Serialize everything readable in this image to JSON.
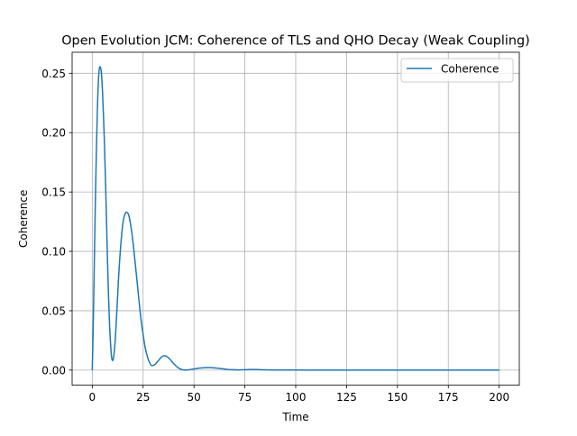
{
  "chart_data": {
    "type": "line",
    "title": "Open Evolution JCM: Coherence of TLS and QHO Decay (Weak Coupling)",
    "xlabel": "Time",
    "ylabel": "Coherence",
    "xlim": [
      -9.9,
      209.9
    ],
    "ylim": [
      -0.0127,
      0.2677
    ],
    "xticks": [
      0,
      25,
      50,
      75,
      100,
      125,
      150,
      175,
      200
    ],
    "xtick_labels": [
      "0",
      "25",
      "50",
      "75",
      "100",
      "125",
      "150",
      "175",
      "200"
    ],
    "yticks": [
      0.0,
      0.05,
      0.1,
      0.15,
      0.2,
      0.25
    ],
    "ytick_labels": [
      "0.00",
      "0.05",
      "0.10",
      "0.15",
      "0.20",
      "0.25"
    ],
    "grid": true,
    "legend": {
      "position": "upper-right",
      "entries": [
        "Coherence"
      ]
    },
    "series": [
      {
        "name": "Coherence",
        "color": "#1f77b4",
        "x": [
          0,
          0.5,
          1,
          1.5,
          2,
          2.5,
          3,
          3.5,
          4,
          4.5,
          5,
          5.5,
          6,
          6.5,
          7,
          7.5,
          8,
          8.5,
          9,
          9.5,
          10,
          10.5,
          11,
          11.5,
          12,
          12.5,
          13,
          14,
          15,
          16,
          17,
          18,
          19,
          20,
          21,
          22,
          23,
          24,
          25,
          26,
          27,
          28,
          29,
          30,
          31,
          32,
          33,
          34,
          35,
          36,
          37,
          38,
          39,
          40,
          41,
          42,
          43,
          44,
          45,
          46,
          47,
          48,
          49,
          50,
          52,
          54,
          56,
          58,
          60,
          62,
          64,
          66,
          68,
          70,
          72,
          74,
          76,
          78,
          80,
          82,
          84,
          86,
          88,
          90,
          95,
          100,
          110,
          120,
          140,
          160,
          180,
          200
        ],
        "y": [
          0.0,
          0.04,
          0.09,
          0.14,
          0.183,
          0.218,
          0.243,
          0.254,
          0.255,
          0.25,
          0.236,
          0.215,
          0.19,
          0.16,
          0.126,
          0.092,
          0.062,
          0.038,
          0.022,
          0.011,
          0.008,
          0.011,
          0.019,
          0.031,
          0.047,
          0.063,
          0.08,
          0.105,
          0.123,
          0.131,
          0.133,
          0.13,
          0.121,
          0.108,
          0.092,
          0.075,
          0.058,
          0.042,
          0.03,
          0.019,
          0.012,
          0.007,
          0.004,
          0.004,
          0.005,
          0.007,
          0.009,
          0.011,
          0.012,
          0.012,
          0.011,
          0.0095,
          0.0075,
          0.0055,
          0.0038,
          0.0023,
          0.0012,
          0.0005,
          0.0002,
          0.0001,
          0.0002,
          0.0004,
          0.0007,
          0.001,
          0.0015,
          0.0019,
          0.0021,
          0.0021,
          0.0019,
          0.0015,
          0.0011,
          0.0007,
          0.0004,
          0.0003,
          0.0002,
          0.0003,
          0.0004,
          0.0005,
          0.0005,
          0.0004,
          0.0003,
          0.0002,
          0.0001,
          0.0001,
          0.0001,
          0.0001,
          0.0,
          0.0,
          0.0,
          0.0,
          0.0,
          0.0
        ]
      }
    ]
  }
}
